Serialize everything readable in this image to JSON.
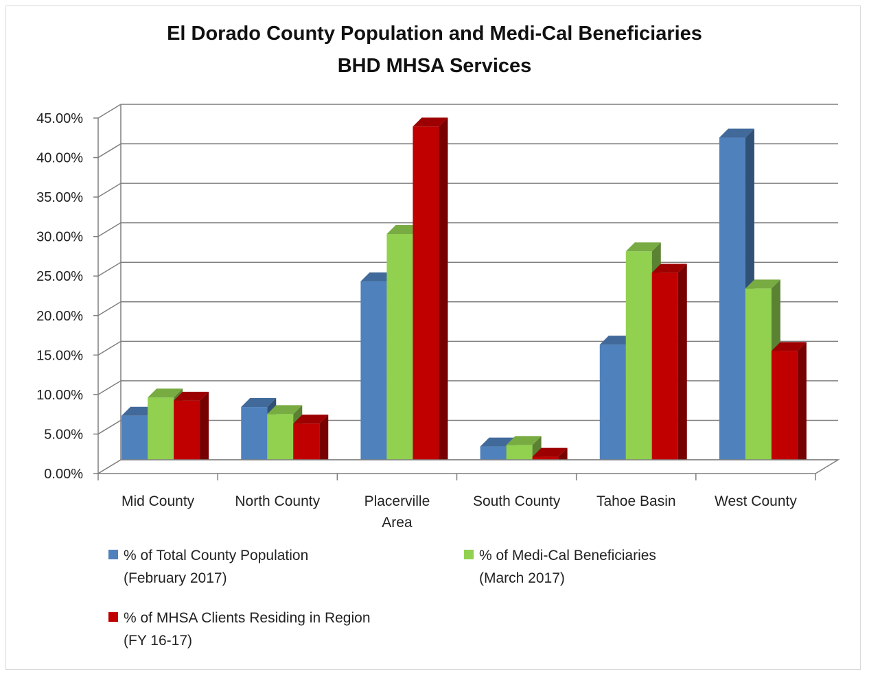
{
  "chart_data": {
    "type": "bar",
    "title": "El Dorado County Population and Medi-Cal Beneficiaries",
    "subtitle": "BHD MHSA Services",
    "categories": [
      [
        "Mid County"
      ],
      [
        "North County"
      ],
      [
        "Placerville",
        "Area"
      ],
      [
        "South County"
      ],
      [
        "Tahoe Basin"
      ],
      [
        "West County"
      ]
    ],
    "ylim": [
      0,
      45
    ],
    "yticks": [
      0,
      5,
      10,
      15,
      20,
      25,
      30,
      35,
      40,
      45
    ],
    "ytick_labels": [
      "0.00%",
      "5.00%",
      "10.00%",
      "15.00%",
      "20.00%",
      "25.00%",
      "30.00%",
      "35.00%",
      "40.00%",
      "45.00%"
    ],
    "grid": true,
    "three_d": true,
    "legend_position": "bottom",
    "series": [
      {
        "name": [
          "% of Total County Population",
          "(February 2017)"
        ],
        "color": "#4f81bd",
        "values": [
          6.8,
          7.9,
          23.8,
          2.9,
          15.8,
          42.0
        ]
      },
      {
        "name": [
          "% of Medi-Cal Beneficiaries",
          "(March 2017)"
        ],
        "color": "#92d050",
        "values": [
          9.1,
          7.0,
          29.8,
          3.1,
          27.6,
          22.9
        ]
      },
      {
        "name": [
          "% of MHSA Clients Residing in Region",
          "(FY 16-17)"
        ],
        "color": "#c00000",
        "values": [
          8.7,
          5.8,
          43.4,
          1.6,
          24.9,
          15.0
        ]
      }
    ]
  }
}
